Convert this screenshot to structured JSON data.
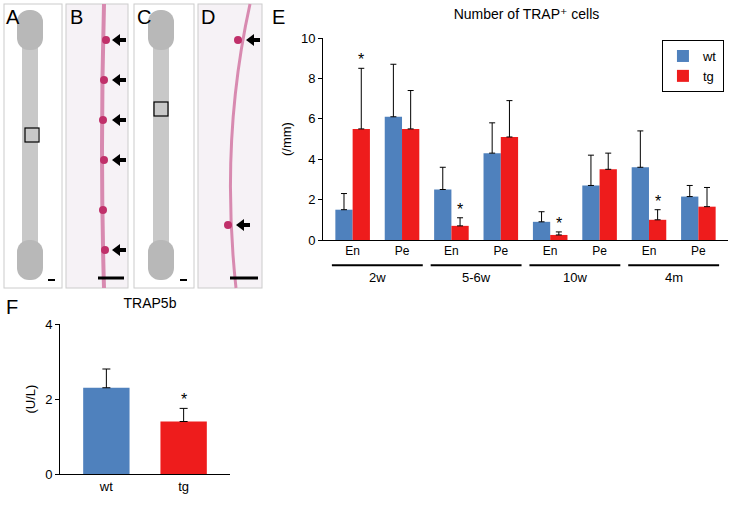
{
  "panels": [
    "A",
    "B",
    "C",
    "D"
  ],
  "chart_data": [
    {
      "panel": "E",
      "type": "bar",
      "title": "Number of TRAP⁺ cells",
      "y_label": "(/mm)",
      "categories": [
        "En",
        "Pe",
        "En",
        "Pe",
        "En",
        "Pe",
        "En",
        "Pe"
      ],
      "groups": [
        "2w",
        "2w",
        "5-6w",
        "5-6w",
        "10w",
        "10w",
        "4m",
        "4m"
      ],
      "series": [
        {
          "name": "wt",
          "color": "#4f81bd",
          "values": [
            1.5,
            6.1,
            2.5,
            4.3,
            0.9,
            2.7,
            3.6,
            2.15
          ],
          "errors": [
            0.8,
            2.6,
            1.1,
            1.5,
            0.5,
            1.5,
            1.8,
            0.55
          ]
        },
        {
          "name": "tg",
          "color": "#ee1c1c",
          "values": [
            5.5,
            5.5,
            0.7,
            5.1,
            0.25,
            3.5,
            1.0,
            1.65
          ],
          "errors": [
            3.0,
            1.9,
            0.4,
            1.8,
            0.15,
            0.8,
            0.5,
            0.95
          ],
          "annotations": [
            "*",
            null,
            "*",
            null,
            "*",
            null,
            "*",
            null
          ]
        }
      ],
      "ylim": [
        0,
        10
      ],
      "yticks": [
        0,
        2,
        4,
        6,
        8,
        10
      ],
      "grid": false,
      "legend": "top right"
    },
    {
      "panel": "F",
      "type": "bar",
      "title": "TRAP5b",
      "y_label": "(U/L)",
      "categories": [
        "wt",
        "tg"
      ],
      "values": [
        2.3,
        1.4
      ],
      "errors": [
        0.5,
        0.35
      ],
      "colors": [
        "#4f81bd",
        "#ee1c1c"
      ],
      "annotations": [
        null,
        "*"
      ],
      "ylim": [
        0,
        4
      ],
      "yticks": [
        0,
        2,
        4
      ],
      "grid": false
    }
  ]
}
